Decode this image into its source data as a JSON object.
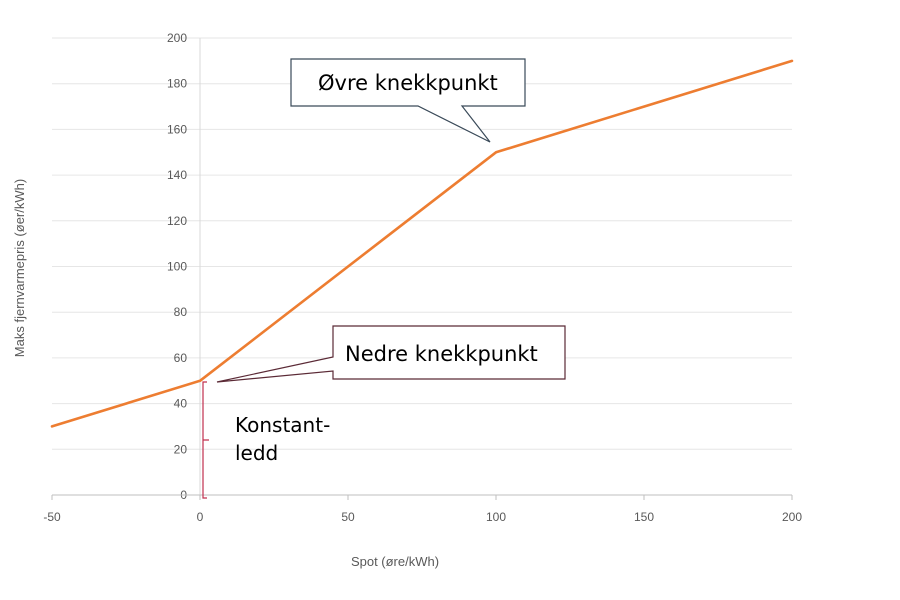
{
  "chart_data": {
    "type": "line",
    "xlabel": "Spot (øre/kWh)",
    "ylabel": "Maks fjernvarmepris (øer/kWh)",
    "xlim": [
      -50,
      200
    ],
    "ylim": [
      0,
      200
    ],
    "x_ticks": [
      "-50",
      "0",
      "50",
      "100",
      "150",
      "200"
    ],
    "y_ticks": [
      "0",
      "20",
      "40",
      "60",
      "80",
      "100",
      "120",
      "140",
      "160",
      "180",
      "200"
    ],
    "grid": "horizontal",
    "series": [
      {
        "color": "#ED7D31",
        "x": [
          -50,
          0,
          100,
          200
        ],
        "y": [
          30,
          50,
          150,
          190
        ]
      }
    ],
    "annotations": {
      "upper": "Øvre knekkpunkt",
      "lower": "Nedre knekkpunkt",
      "constant_line1": "Konstant-",
      "constant_line2": "ledd"
    }
  }
}
